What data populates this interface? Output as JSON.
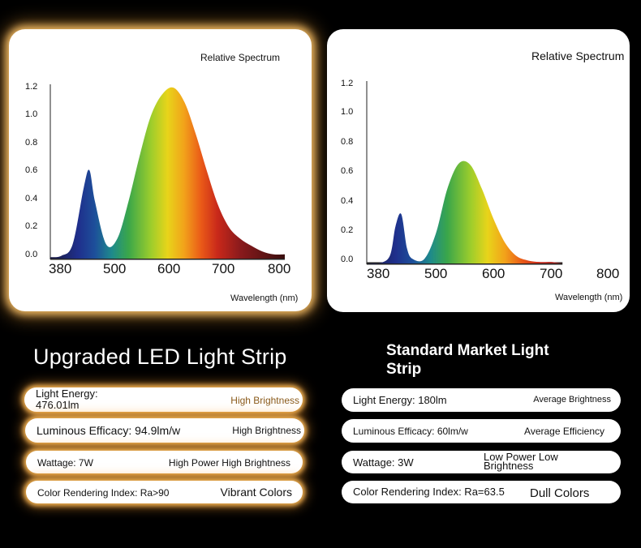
{
  "left_panel": {
    "chart_title": "Relative Spectrum",
    "x_axis_label": "Wavelength (nm)",
    "y_ticks": [
      "1.2",
      "1.0",
      "0.8",
      "0.6",
      "0.4",
      "0.2",
      "0.0"
    ],
    "x_ticks": [
      "380",
      "500",
      "600",
      "700",
      "800"
    ],
    "heading": "Upgraded LED Light Strip",
    "specs": [
      {
        "label": "Light Energy: 476.01lm",
        "value": "High Brightness"
      },
      {
        "label": "Luminous Efficacy: 94.9lm/w",
        "value": "High Brightness"
      },
      {
        "label": "Wattage: 7W",
        "value": "High Power High Brightness"
      },
      {
        "label": "Color Rendering Index: Ra>90",
        "value": "Vibrant Colors"
      }
    ]
  },
  "right_panel": {
    "chart_title": "Relative Spectrum",
    "x_axis_label": "Wavelength (nm)",
    "y_ticks": [
      "1.2",
      "1.0",
      "0.8",
      "0.6",
      "0.4",
      "0.2",
      "0.0"
    ],
    "x_ticks": [
      "380",
      "500",
      "600",
      "700",
      "800"
    ],
    "heading": "Standard Market Light Strip",
    "specs": [
      {
        "label": "Light Energy: 180lm",
        "value": "Average Brightness"
      },
      {
        "label": "Luminous Efficacy: 60lm/w",
        "value": "Average Efficiency"
      },
      {
        "label": "Wattage: 3W",
        "value": "Low Power Low Brightness"
      },
      {
        "label": "Color Rendering Index: Ra=63.5",
        "value": "Dull Colors"
      }
    ]
  },
  "chart_data": [
    {
      "type": "area",
      "title": "Relative Spectrum",
      "xlabel": "Wavelength (nm)",
      "ylabel": "",
      "xlim": [
        380,
        800
      ],
      "ylim": [
        0,
        1.2
      ],
      "x": [
        380,
        400,
        420,
        440,
        450,
        460,
        480,
        500,
        520,
        540,
        560,
        580,
        600,
        620,
        640,
        660,
        680,
        700,
        720,
        740,
        760,
        780,
        800
      ],
      "y": [
        0.01,
        0.02,
        0.1,
        0.5,
        0.62,
        0.4,
        0.1,
        0.14,
        0.4,
        0.72,
        1.0,
        1.15,
        1.2,
        1.1,
        0.88,
        0.62,
        0.38,
        0.22,
        0.14,
        0.09,
        0.05,
        0.03,
        0.03
      ]
    },
    {
      "type": "area",
      "title": "Relative Spectrum",
      "xlabel": "Wavelength (nm)",
      "ylabel": "",
      "xlim": [
        380,
        800
      ],
      "ylim": [
        0,
        1.2
      ],
      "x": [
        380,
        400,
        420,
        430,
        440,
        450,
        460,
        480,
        500,
        520,
        540,
        560,
        580,
        600,
        620,
        640,
        660,
        680,
        700,
        720
      ],
      "y": [
        0.0,
        0.0,
        0.05,
        0.25,
        0.33,
        0.1,
        0.03,
        0.03,
        0.2,
        0.5,
        0.67,
        0.66,
        0.5,
        0.3,
        0.14,
        0.05,
        0.02,
        0.01,
        0.01,
        0.0
      ]
    }
  ],
  "colors": {
    "background": "#000000",
    "card": "#ffffff",
    "glow": "#ffb54a",
    "accent_text": "#8a5a1a"
  }
}
